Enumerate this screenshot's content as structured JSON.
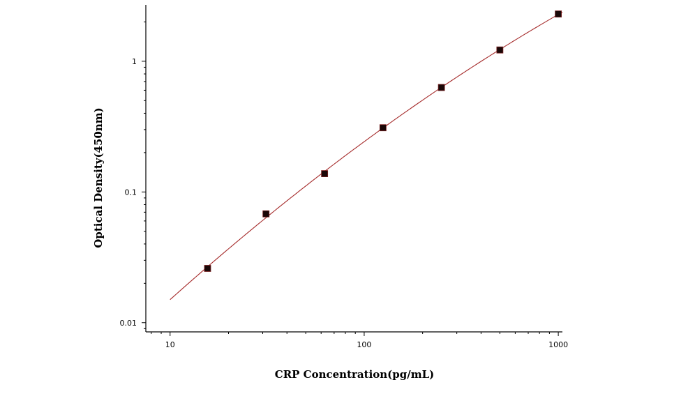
{
  "chart_data": {
    "type": "scatter",
    "xlabel": "CRP Concentration(pg/mL)",
    "ylabel": "Optical Density(450nm)",
    "x_scale": "log",
    "y_scale": "log",
    "xlim": [
      7.5,
      1050
    ],
    "ylim": [
      0.0085,
      2.7
    ],
    "x_ticks": [
      10,
      100,
      1000
    ],
    "x_tick_labels": [
      "10",
      "100",
      "1000"
    ],
    "y_ticks": [
      0.01,
      0.1,
      1
    ],
    "y_tick_labels": [
      "0.01",
      "0.1",
      "1"
    ],
    "grid": false,
    "series": [
      {
        "points": [
          {
            "x": 15.6,
            "y": 0.026
          },
          {
            "x": 31.2,
            "y": 0.068
          },
          {
            "x": 62.5,
            "y": 0.138
          },
          {
            "x": 125,
            "y": 0.31
          },
          {
            "x": 250,
            "y": 0.63
          },
          {
            "x": 500,
            "y": 1.22
          },
          {
            "x": 1000,
            "y": 2.3
          }
        ],
        "color": "#1a0808"
      }
    ],
    "fit_curve": {
      "color": "#a52a2a",
      "x_range": [
        10,
        1050
      ]
    }
  }
}
